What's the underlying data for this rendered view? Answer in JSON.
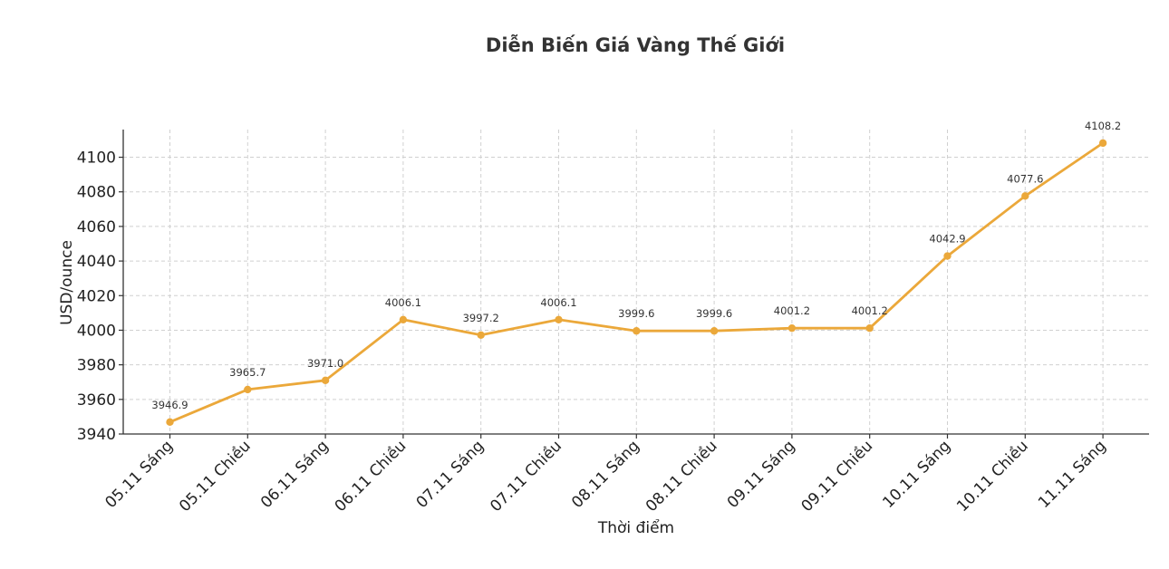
{
  "chart_data": {
    "type": "line",
    "title": "Diễn Biến Giá Vàng Thế Giới",
    "xlabel": "Thời điểm",
    "ylabel": "USD/ounce",
    "categories": [
      "05.11 Sáng",
      "05.11 Chiều",
      "06.11 Sáng",
      "06.11 Chiều",
      "07.11 Sáng",
      "07.11 Chiều",
      "08.11 Sáng",
      "08.11 Chiều",
      "09.11 Sáng",
      "09.11 Chiều",
      "10.11 Sáng",
      "10.11 Chiều",
      "11.11 Sáng"
    ],
    "series": [
      {
        "values": [
          3946.9,
          3965.7,
          3971.0,
          4006.1,
          3997.2,
          4006.1,
          3999.6,
          3999.6,
          4001.2,
          4001.2,
          4042.9,
          4077.6,
          4108.2
        ]
      }
    ],
    "data_labels": [
      "3946.9",
      "3965.7",
      "3971.0",
      "4006.1",
      "3997.2",
      "4006.1",
      "3999.6",
      "3999.6",
      "4001.2",
      "4001.2",
      "4042.9",
      "4077.6",
      "4108.2"
    ],
    "ylim": [
      3940,
      4116
    ],
    "yticks": [
      3940,
      3960,
      3980,
      4000,
      4020,
      4040,
      4060,
      4080,
      4100
    ],
    "grid": true,
    "colors": {
      "line": "#EBA83A"
    }
  }
}
